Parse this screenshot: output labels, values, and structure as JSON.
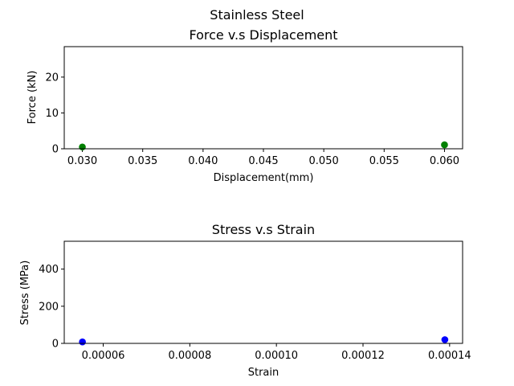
{
  "figure": {
    "suptitle": "Stainless Steel"
  },
  "chart_data": [
    {
      "type": "scatter",
      "title": "Force v.s Displacement",
      "xlabel": "Displacement(mm)",
      "ylabel": "Force (kN)",
      "xlim": [
        0.0285,
        0.0615
      ],
      "ylim": [
        0,
        28.5
      ],
      "xticks": [
        0.03,
        0.035,
        0.04,
        0.045,
        0.05,
        0.055,
        0.06
      ],
      "xtick_labels": [
        "0.030",
        "0.035",
        "0.040",
        "0.045",
        "0.050",
        "0.055",
        "0.060"
      ],
      "yticks": [
        0,
        10,
        20
      ],
      "ytick_labels": [
        "0",
        "10",
        "20"
      ],
      "grid": false,
      "color": "#008000",
      "points": [
        {
          "x": 0.03,
          "y": 0.5
        },
        {
          "x": 0.06,
          "y": 1.1
        }
      ]
    },
    {
      "type": "scatter",
      "title": "Stress v.s Strain",
      "xlabel": "Strain",
      "ylabel": "Stress (MPa)",
      "xlim": [
        5.1e-05,
        0.000143
      ],
      "ylim": [
        0,
        550
      ],
      "xticks": [
        6e-05,
        8e-05,
        0.0001,
        0.00012,
        0.00014
      ],
      "xtick_labels": [
        "0.00006",
        "0.00008",
        "0.00010",
        "0.00012",
        "0.00014"
      ],
      "yticks": [
        0,
        200,
        400
      ],
      "ytick_labels": [
        "0",
        "200",
        "400"
      ],
      "grid": false,
      "color": "#0000ff",
      "points": [
        {
          "x": 5.52e-05,
          "y": 8
        },
        {
          "x": 0.0001389,
          "y": 20
        }
      ]
    }
  ]
}
